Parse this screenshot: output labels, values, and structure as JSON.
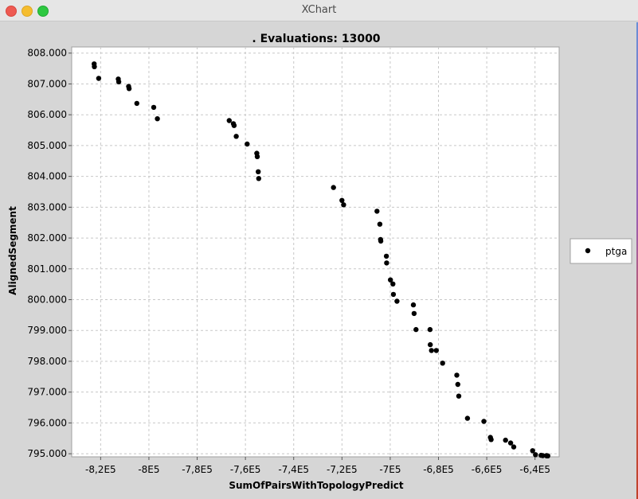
{
  "window": {
    "title": "XChart"
  },
  "chart_data": {
    "type": "scatter",
    "title": ". Evaluations: 13000",
    "xlabel": "SumOfPairsWithTopologyPredict",
    "ylabel": "AlignedSegment",
    "xlim": [
      -832000,
      -630000
    ],
    "ylim": [
      794900,
      808200
    ],
    "xticks": [
      -820000,
      -800000,
      -780000,
      -760000,
      -740000,
      -720000,
      -700000,
      -680000,
      -660000,
      -640000
    ],
    "xtick_labels": [
      "-8,2E5",
      "-8E5",
      "-7,8E5",
      "-7,6E5",
      "-7,4E5",
      "-7,2E5",
      "-7E5",
      "-6,8E5",
      "-6,6E5",
      "-6,4E5"
    ],
    "yticks": [
      795000,
      796000,
      797000,
      798000,
      799000,
      800000,
      801000,
      802000,
      803000,
      804000,
      805000,
      806000,
      807000,
      808000
    ],
    "ytick_labels": [
      "795.000",
      "796.000",
      "797.000",
      "798.000",
      "799.000",
      "800.000",
      "801.000",
      "802.000",
      "803.000",
      "804.000",
      "805.000",
      "806.000",
      "807.000",
      "808.000"
    ],
    "grid": true,
    "legend_position": "right",
    "series": [
      {
        "name": "ptga",
        "color": "#000000",
        "x": [
          -822700,
          -822600,
          -820800,
          -812700,
          -812500,
          -808400,
          -808200,
          -805000,
          -798000,
          -796500,
          -766700,
          -765000,
          -764700,
          -763800,
          -759300,
          -755300,
          -755100,
          -754700,
          -754500,
          -723500,
          -720000,
          -719300,
          -705500,
          -704300,
          -704000,
          -703900,
          -701600,
          -701500,
          -699900,
          -698900,
          -698700,
          -697200,
          -690400,
          -690100,
          -689300,
          -683500,
          -683400,
          -682900,
          -680900,
          -678300,
          -672400,
          -672000,
          -671600,
          -668000,
          -661200,
          -658500,
          -658200,
          -652200,
          -650100,
          -648800,
          -641000,
          -639800,
          -637500,
          -636800,
          -635200,
          -635100,
          -634700
        ],
        "y": [
          807650,
          807560,
          807180,
          807160,
          807070,
          806920,
          806850,
          806370,
          806240,
          805870,
          805810,
          805710,
          805650,
          805300,
          805050,
          804750,
          804640,
          804150,
          803930,
          803640,
          803220,
          803080,
          802870,
          802450,
          801950,
          801900,
          801410,
          801190,
          800640,
          800510,
          800170,
          799950,
          799830,
          799550,
          799030,
          799030,
          798540,
          798350,
          798350,
          797940,
          797550,
          797250,
          796870,
          796150,
          796050,
          795530,
          795460,
          795440,
          795350,
          795220,
          795100,
          794970,
          794950,
          794940,
          794940,
          794930,
          794930
        ]
      }
    ]
  }
}
